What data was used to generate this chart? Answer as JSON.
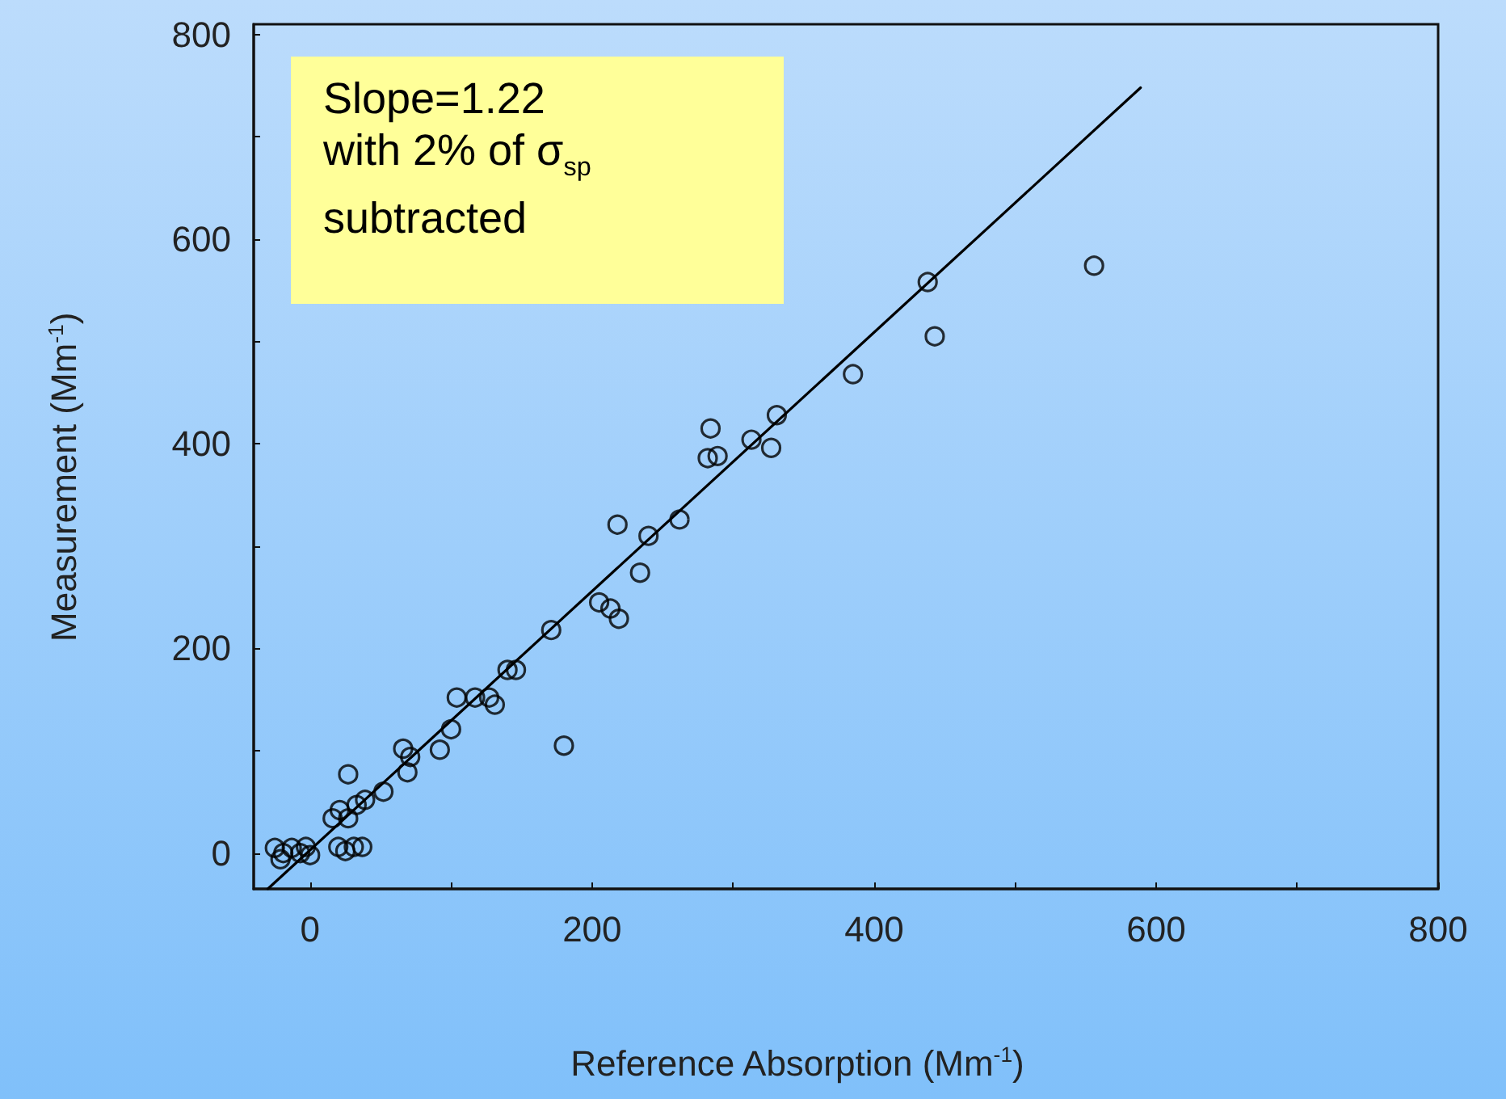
{
  "chart_data": {
    "type": "scatter",
    "xlabel": "Reference Absorption (Mm$^{-1}$)",
    "ylabel": "Measurement (Mm$^{-1}$)",
    "annotations": [
      "Slope=1.22\nwith 2% of σ$_{sp}$\nsubtracted"
    ],
    "xlim": [
      -40,
      800
    ],
    "xticks": [
      0,
      {
        "value": 100,
        "label": null
      },
      200,
      {
        "value": 300,
        "label": null
      },
      400,
      {
        "value": 500,
        "label": null
      },
      600,
      {
        "value": 700,
        "label": null
      },
      800
    ],
    "ylim": [
      -35,
      810
    ],
    "yticks": [
      0,
      {
        "value": 100,
        "label": null
      },
      200,
      {
        "value": 300,
        "label": null
      },
      400,
      {
        "value": 500,
        "label": null
      },
      600,
      {
        "value": 700,
        "label": null
      },
      800
    ],
    "marker": "circle",
    "series": [
      {
        "color": "#000000",
        "x": [
          -25,
          -19,
          -13,
          -7,
          -3,
          0,
          -21,
          20,
          25,
          31,
          37,
          16,
          21,
          27,
          33,
          39,
          27,
          52,
          66,
          71,
          69,
          92,
          100,
          104,
          117,
          127,
          131,
          140,
          146,
          180,
          171,
          205,
          213,
          219,
          234,
          218,
          240,
          262,
          284,
          282,
          289,
          313,
          327,
          331,
          385,
          438,
          443,
          556
        ],
        "values": [
          5,
          0,
          5,
          0,
          6,
          -2,
          -6,
          6,
          2,
          6,
          6,
          34,
          42,
          34,
          47,
          52,
          77,
          60,
          102,
          94,
          79,
          101,
          121,
          152,
          152,
          152,
          145,
          179,
          179,
          105,
          218,
          245,
          239,
          229,
          274,
          321,
          310,
          326,
          415,
          386,
          388,
          404,
          396,
          428,
          468,
          558,
          505,
          574
        ]
      },
      {
        "type": "line",
        "color": "#000000",
        "marker": "none",
        "x": [
          -30,
          589
        ],
        "values": [
          -35,
          748
        ]
      }
    ]
  }
}
